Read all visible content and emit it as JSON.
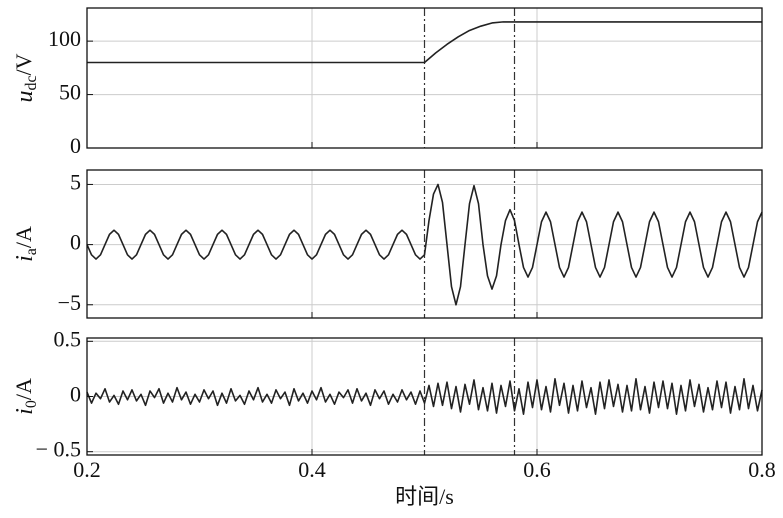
{
  "chart_data": [
    {
      "type": "line",
      "ylabel_parts": [
        "u",
        "dc",
        "/V"
      ],
      "x": [
        0.2,
        0.5,
        0.51,
        0.52,
        0.53,
        0.54,
        0.55,
        0.56,
        0.57,
        0.8
      ],
      "values": [
        80,
        80,
        89,
        97,
        104,
        110,
        114,
        117,
        118,
        118
      ],
      "color": "#222222",
      "xlim": [
        0.2,
        0.8
      ],
      "xticks": [
        0.2,
        0.4,
        0.6,
        0.8
      ],
      "ylim": [
        0,
        131
      ],
      "yticks": [
        0,
        50,
        100
      ],
      "grid": true,
      "vlines": [
        0.5,
        0.58
      ]
    },
    {
      "type": "line",
      "ylabel_parts": [
        "i",
        "a",
        "/A"
      ],
      "x": [
        0.2,
        0.204,
        0.208,
        0.212,
        0.216,
        0.22,
        0.224,
        0.228,
        0.232,
        0.236,
        0.24,
        0.244,
        0.248,
        0.252,
        0.256,
        0.26,
        0.264,
        0.268,
        0.272,
        0.276,
        0.28,
        0.284,
        0.288,
        0.292,
        0.296,
        0.3,
        0.304,
        0.308,
        0.312,
        0.316,
        0.32,
        0.324,
        0.328,
        0.332,
        0.336,
        0.34,
        0.344,
        0.348,
        0.352,
        0.356,
        0.36,
        0.364,
        0.368,
        0.372,
        0.376,
        0.38,
        0.384,
        0.388,
        0.392,
        0.396,
        0.4,
        0.404,
        0.408,
        0.412,
        0.416,
        0.42,
        0.424,
        0.428,
        0.432,
        0.436,
        0.44,
        0.444,
        0.448,
        0.452,
        0.456,
        0.46,
        0.464,
        0.468,
        0.472,
        0.476,
        0.48,
        0.484,
        0.488,
        0.492,
        0.496,
        0.5,
        0.504,
        0.508,
        0.512,
        0.516,
        0.52,
        0.524,
        0.528,
        0.532,
        0.536,
        0.54,
        0.544,
        0.548,
        0.552,
        0.556,
        0.56,
        0.564,
        0.568,
        0.572,
        0.576,
        0.58,
        0.584,
        0.588,
        0.592,
        0.596,
        0.6,
        0.604,
        0.608,
        0.612,
        0.616,
        0.62,
        0.624,
        0.628,
        0.632,
        0.636,
        0.64,
        0.644,
        0.648,
        0.652,
        0.656,
        0.66,
        0.664,
        0.668,
        0.672,
        0.676,
        0.68,
        0.684,
        0.688,
        0.692,
        0.696,
        0.7,
        0.704,
        0.708,
        0.712,
        0.716,
        0.72,
        0.724,
        0.728,
        0.732,
        0.736,
        0.74,
        0.744,
        0.748,
        0.752,
        0.756,
        0.76,
        0.764,
        0.768,
        0.772,
        0.776,
        0.78,
        0.784,
        0.788,
        0.792,
        0.796,
        0.8
      ],
      "values": [
        0,
        -0.85,
        -1.2,
        -0.85,
        0,
        0.85,
        1.2,
        0.85,
        0,
        -0.85,
        -1.2,
        -0.85,
        0,
        0.85,
        1.2,
        0.85,
        0,
        -0.85,
        -1.2,
        -0.85,
        0,
        0.85,
        1.2,
        0.85,
        0,
        -0.85,
        -1.2,
        -0.85,
        0,
        0.85,
        1.2,
        0.85,
        0,
        -0.85,
        -1.2,
        -0.85,
        0,
        0.85,
        1.2,
        0.85,
        0,
        -0.85,
        -1.2,
        -0.85,
        0,
        0.85,
        1.2,
        0.85,
        0,
        -0.85,
        -1.2,
        -0.85,
        0,
        0.85,
        1.2,
        0.85,
        0,
        -0.85,
        -1.2,
        -0.85,
        0,
        0.85,
        1.2,
        0.85,
        0,
        -0.85,
        -1.2,
        -0.85,
        0,
        0.85,
        1.2,
        0.85,
        0,
        -0.85,
        -1.2,
        -0.85,
        2.0,
        4.2,
        5.0,
        3.5,
        0,
        -3.5,
        -5.0,
        -3.5,
        0,
        3.4,
        4.9,
        3.4,
        0,
        -2.6,
        -3.7,
        -2.6,
        0,
        2.0,
        2.9,
        2.0,
        0,
        -1.9,
        -2.7,
        -1.9,
        0,
        1.9,
        2.7,
        1.9,
        0,
        -1.9,
        -2.7,
        -1.9,
        0,
        1.9,
        2.7,
        1.9,
        0,
        -1.9,
        -2.7,
        -1.9,
        0,
        1.9,
        2.7,
        1.9,
        0,
        -1.9,
        -2.7,
        -1.9,
        0,
        1.9,
        2.7,
        1.9,
        0,
        -1.9,
        -2.7,
        -1.9,
        0,
        1.9,
        2.7,
        1.9,
        0,
        -1.9,
        -2.7,
        -1.9,
        0,
        1.9,
        2.7,
        1.9,
        0,
        -1.9,
        -2.7,
        -1.9,
        0,
        1.9,
        2.7
      ],
      "color": "#222222",
      "xlim": [
        0.2,
        0.8
      ],
      "xticks": [
        0.2,
        0.4,
        0.6,
        0.8
      ],
      "ylim": [
        -6.1,
        6.2
      ],
      "yticks": [
        {
          "value": -5,
          "label": "−5"
        },
        0,
        5
      ],
      "grid": true,
      "vlines": [
        0.5,
        0.58
      ]
    },
    {
      "type": "line",
      "ylabel_parts": [
        "i",
        "0",
        "/A"
      ],
      "xlabel": "时间/s",
      "show_xtick_labels": true,
      "x": [
        0.2,
        0.204,
        0.208,
        0.212,
        0.216,
        0.22,
        0.224,
        0.228,
        0.232,
        0.236,
        0.24,
        0.244,
        0.248,
        0.252,
        0.256,
        0.26,
        0.264,
        0.268,
        0.272,
        0.276,
        0.28,
        0.284,
        0.288,
        0.292,
        0.296,
        0.3,
        0.304,
        0.308,
        0.312,
        0.316,
        0.32,
        0.324,
        0.328,
        0.332,
        0.336,
        0.34,
        0.344,
        0.348,
        0.352,
        0.356,
        0.36,
        0.364,
        0.368,
        0.372,
        0.376,
        0.38,
        0.384,
        0.388,
        0.392,
        0.396,
        0.4,
        0.404,
        0.408,
        0.412,
        0.416,
        0.42,
        0.424,
        0.428,
        0.432,
        0.436,
        0.44,
        0.444,
        0.448,
        0.452,
        0.456,
        0.46,
        0.464,
        0.468,
        0.472,
        0.476,
        0.48,
        0.484,
        0.488,
        0.492,
        0.496,
        0.5,
        0.504,
        0.508,
        0.512,
        0.516,
        0.52,
        0.524,
        0.528,
        0.532,
        0.536,
        0.54,
        0.544,
        0.548,
        0.552,
        0.556,
        0.56,
        0.564,
        0.568,
        0.572,
        0.576,
        0.58,
        0.584,
        0.588,
        0.592,
        0.596,
        0.6,
        0.604,
        0.608,
        0.612,
        0.616,
        0.62,
        0.624,
        0.628,
        0.632,
        0.636,
        0.64,
        0.644,
        0.648,
        0.652,
        0.656,
        0.66,
        0.664,
        0.668,
        0.672,
        0.676,
        0.68,
        0.684,
        0.688,
        0.692,
        0.696,
        0.7,
        0.704,
        0.708,
        0.712,
        0.716,
        0.72,
        0.724,
        0.728,
        0.732,
        0.736,
        0.74,
        0.744,
        0.748,
        0.752,
        0.756,
        0.76,
        0.764,
        0.768,
        0.772,
        0.776,
        0.78,
        0.784,
        0.788,
        0.792,
        0.796,
        0.8
      ],
      "values": [
        0.04,
        -0.06,
        0.03,
        -0.02,
        0.07,
        -0.05,
        0.01,
        -0.07,
        0.05,
        -0.03,
        0.06,
        -0.04,
        0.02,
        -0.08,
        0.05,
        -0.01,
        0.07,
        -0.06,
        0.03,
        -0.05,
        0.08,
        -0.03,
        0.04,
        -0.07,
        0.02,
        -0.05,
        0.06,
        -0.02,
        0.05,
        -0.08,
        0.03,
        -0.06,
        0.07,
        -0.04,
        0.01,
        -0.07,
        0.05,
        -0.03,
        0.08,
        -0.05,
        0.02,
        -0.06,
        0.06,
        -0.02,
        0.04,
        -0.08,
        0.07,
        -0.04,
        0.03,
        -0.06,
        0.05,
        -0.03,
        0.08,
        -0.05,
        0.02,
        -0.07,
        0.04,
        -0.01,
        0.06,
        -0.06,
        0.07,
        -0.04,
        0.03,
        -0.08,
        0.06,
        -0.02,
        0.05,
        -0.07,
        0.02,
        -0.05,
        0.06,
        -0.03,
        0.04,
        -0.07,
        0.05,
        -0.06,
        0.1,
        -0.09,
        0.12,
        -0.08,
        0.13,
        -0.11,
        0.09,
        -0.14,
        0.11,
        -0.07,
        0.15,
        -0.12,
        0.08,
        -0.13,
        0.12,
        -0.15,
        0.1,
        -0.09,
        0.14,
        -0.13,
        0.07,
        -0.16,
        0.13,
        -0.1,
        0.15,
        -0.12,
        0.09,
        -0.14,
        0.16,
        -0.08,
        0.12,
        -0.15,
        0.1,
        -0.13,
        0.14,
        -0.1,
        0.08,
        -0.16,
        0.13,
        -0.11,
        0.15,
        -0.09,
        0.11,
        -0.14,
        0.1,
        -0.13,
        0.16,
        -0.12,
        0.09,
        -0.15,
        0.13,
        -0.1,
        0.14,
        -0.11,
        0.12,
        -0.16,
        0.1,
        -0.13,
        0.15,
        -0.09,
        0.11,
        -0.14,
        0.08,
        -0.12,
        0.14,
        -0.1,
        0.13,
        -0.15,
        0.09,
        -0.12,
        0.16,
        -0.11,
        0.1,
        -0.13,
        0.06
      ],
      "color": "#222222",
      "xlim": [
        0.2,
        0.8
      ],
      "xticks": [
        0.2,
        0.4,
        0.6,
        0.8
      ],
      "ylim": [
        -0.53,
        0.53
      ],
      "yticks": [
        {
          "value": -0.5,
          "label": "− 0.5"
        },
        0,
        0.5
      ],
      "grid": true,
      "vlines": [
        0.5,
        0.58
      ]
    }
  ]
}
